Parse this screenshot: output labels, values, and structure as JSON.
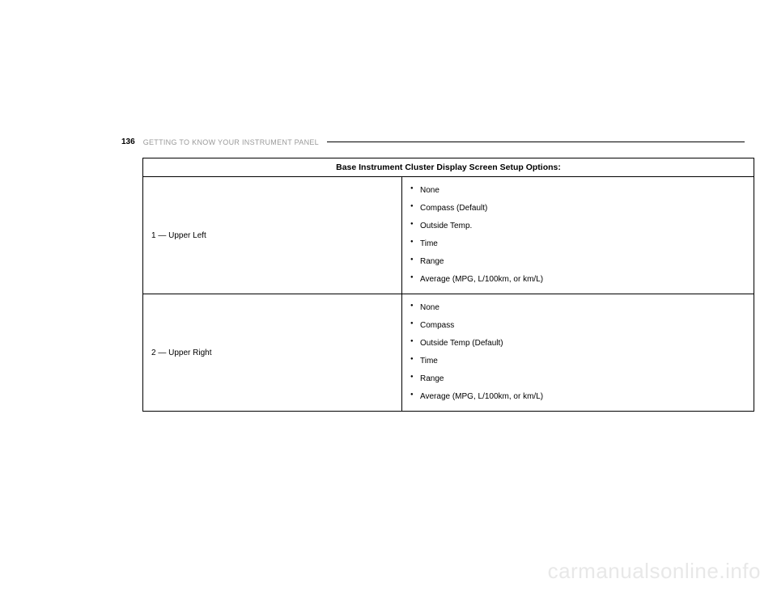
{
  "header": {
    "page_number": "136",
    "section_title": "GETTING TO KNOW YOUR INSTRUMENT PANEL"
  },
  "table": {
    "title": "Base Instrument Cluster Display Screen Setup Options:",
    "rows": [
      {
        "label": "1 — Upper Left",
        "options": [
          "None",
          "Compass (Default)",
          "Outside Temp.",
          "Time",
          "Range",
          "Average (MPG, L/100km, or km/L)"
        ]
      },
      {
        "label": "2 — Upper Right",
        "options": [
          "None",
          "Compass",
          "Outside Temp (Default)",
          "Time",
          "Range",
          "Average (MPG, L/100km, or km/L)"
        ]
      }
    ]
  },
  "watermark": "carmanualsonline.info",
  "colors": {
    "background": "#ffffff",
    "text": "#000000",
    "section_title": "#9a9a9a",
    "border": "#000000",
    "watermark": "#e8e8e8"
  }
}
